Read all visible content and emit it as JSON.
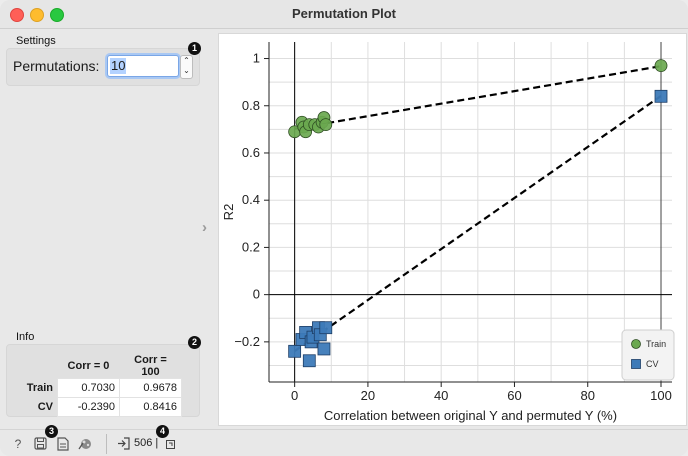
{
  "window": {
    "title": "Permutation Plot"
  },
  "settings": {
    "group_label": "Settings",
    "permutations_label": "Permutations:",
    "permutations_value": "10",
    "badge": "1"
  },
  "info": {
    "group_label": "Info",
    "badge": "2",
    "columns": [
      "",
      "Corr = 0",
      "Corr = 100"
    ],
    "rows": [
      {
        "label": "Train",
        "corr0": "0.7030",
        "corr100": "0.9678"
      },
      {
        "label": "CV",
        "corr0": "-0.2390",
        "corr100": "0.8416"
      }
    ]
  },
  "statusbar": {
    "badge3": "3",
    "badge4": "4",
    "count": "506",
    "icons": [
      "help-icon",
      "save-icon",
      "report-icon",
      "visualize-icon",
      "input-icon",
      "output-icon"
    ]
  },
  "chart_data": {
    "type": "scatter",
    "title": "",
    "xlabel": "Correlation between original Y and permuted Y (%)",
    "ylabel": "R2",
    "xlim": [
      -7,
      103
    ],
    "ylim": [
      -0.37,
      1.07
    ],
    "xticks": [
      0,
      20,
      40,
      60,
      80,
      100
    ],
    "yticks": [
      -0.2,
      0,
      0.2,
      0.4,
      0.6,
      0.8,
      1
    ],
    "ytick_labels": [
      "−0.2",
      "0",
      "0.2",
      "0.4",
      "0.6",
      "0.8",
      "1"
    ],
    "grid": true,
    "legend_position": "bottom-right",
    "series": [
      {
        "name": "Train",
        "marker": "circle",
        "color": "#6aa84f",
        "points": [
          [
            0,
            0.69
          ],
          [
            2,
            0.73
          ],
          [
            2.5,
            0.71
          ],
          [
            3,
            0.69
          ],
          [
            4,
            0.72
          ],
          [
            5.5,
            0.72
          ],
          [
            6.5,
            0.71
          ],
          [
            7.5,
            0.73
          ],
          [
            8,
            0.75
          ],
          [
            8.5,
            0.72
          ],
          [
            100,
            0.97
          ]
        ],
        "fit": [
          [
            0,
            0.703
          ],
          [
            100,
            0.9678
          ]
        ]
      },
      {
        "name": "CV",
        "marker": "square",
        "color": "#3d7ab8",
        "points": [
          [
            0,
            -0.24
          ],
          [
            2,
            -0.19
          ],
          [
            3,
            -0.16
          ],
          [
            4,
            -0.28
          ],
          [
            4.5,
            -0.2
          ],
          [
            5,
            -0.18
          ],
          [
            6.5,
            -0.14
          ],
          [
            7,
            -0.17
          ],
          [
            8,
            -0.23
          ],
          [
            8.5,
            -0.14
          ],
          [
            100,
            0.84
          ]
        ],
        "fit": [
          [
            0,
            -0.239
          ],
          [
            100,
            0.8416
          ]
        ]
      }
    ]
  }
}
